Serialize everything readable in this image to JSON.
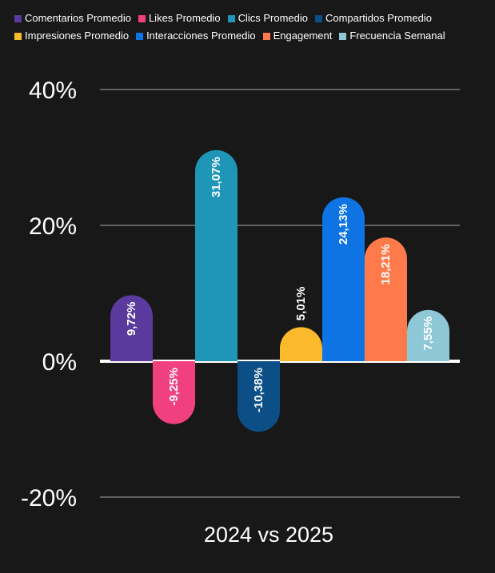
{
  "chart_data": {
    "type": "bar",
    "categories": [
      "2024 vs 2025"
    ],
    "xlabel": "2024 vs 2025",
    "ylim": [
      -20,
      40
    ],
    "yticks": [
      40,
      20,
      0,
      -20
    ],
    "ytick_labels": [
      "40%",
      "20%",
      "0%",
      "-20%"
    ],
    "legend_position": "top",
    "grid": true,
    "series": [
      {
        "name": "Comentarios Promedio",
        "value": 9.72,
        "label": "9,72%",
        "color": "#5b3a9e"
      },
      {
        "name": "Likes Promedio",
        "value": -9.25,
        "label": "-9,25%",
        "color": "#f0417e"
      },
      {
        "name": "Clics Promedio",
        "value": 31.07,
        "label": "31,07%",
        "color": "#1f95b8"
      },
      {
        "name": "Compartidos Promedio",
        "value": -10.38,
        "label": "-10,38%",
        "color": "#0b4f86"
      },
      {
        "name": "Impresiones Promedio",
        "value": 5.01,
        "label": "5,01%",
        "color": "#fbb92c"
      },
      {
        "name": "Interacciones Promedio",
        "value": 24.13,
        "label": "24,13%",
        "color": "#0f74e3"
      },
      {
        "name": "Engagement",
        "value": 18.21,
        "label": "18,21%",
        "color": "#ff7a4a"
      },
      {
        "name": "Frecuencia Semanal",
        "value": 7.55,
        "label": "7,55%",
        "color": "#8ec7d6"
      }
    ]
  }
}
